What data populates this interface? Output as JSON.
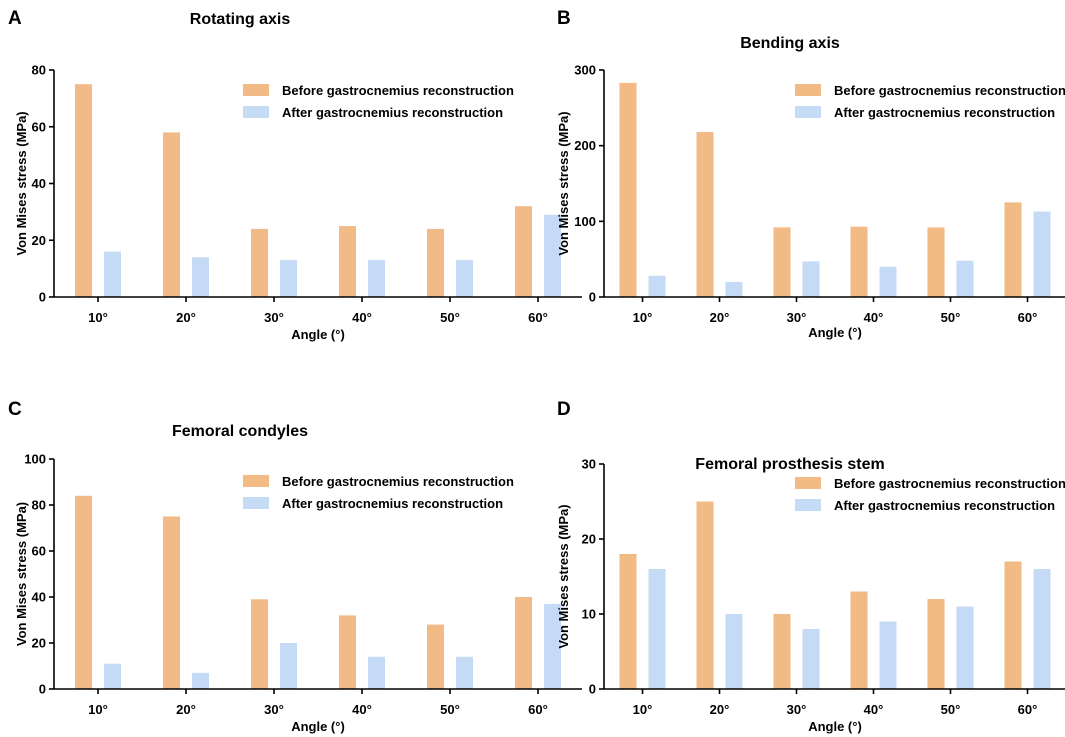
{
  "figure": {
    "colors": {
      "before": "#F2BA84",
      "after": "#C5DAF5"
    },
    "legend_before": "Before gastrocnemius reconstruction",
    "legend_after": "After gastrocnemius reconstruction"
  },
  "chart_data": [
    {
      "panel": "A",
      "type": "bar",
      "title": "Rotating axis",
      "xlabel": "Angle (°)",
      "ylabel": "Von Mises stress (MPa)",
      "categories": [
        "10°",
        "20°",
        "30°",
        "40°",
        "50°",
        "60°"
      ],
      "ylim": [
        0,
        80
      ],
      "yticks": [
        0,
        20,
        40,
        60,
        80
      ],
      "legend_position": "top-right",
      "series": [
        {
          "name": "Before gastrocnemius reconstruction",
          "values": [
            75,
            58,
            24,
            25,
            24,
            32
          ]
        },
        {
          "name": "After gastrocnemius reconstruction",
          "values": [
            16,
            14,
            13,
            13,
            13,
            29
          ]
        }
      ]
    },
    {
      "panel": "B",
      "type": "bar",
      "title": "Bending axis",
      "xlabel": "Angle (°)",
      "ylabel": "Von Mises stress (MPa)",
      "categories": [
        "10°",
        "20°",
        "30°",
        "40°",
        "50°",
        "60°"
      ],
      "ylim": [
        0,
        300
      ],
      "yticks": [
        0,
        100,
        200,
        300
      ],
      "legend_position": "top-right",
      "series": [
        {
          "name": "Before gastrocnemius reconstruction",
          "values": [
            283,
            218,
            92,
            93,
            92,
            125
          ]
        },
        {
          "name": "After gastrocnemius reconstruction",
          "values": [
            28,
            20,
            47,
            40,
            48,
            113
          ]
        }
      ]
    },
    {
      "panel": "C",
      "type": "bar",
      "title": "Femoral condyles",
      "xlabel": "Angle (°)",
      "ylabel": "Von Mises stress (MPa)",
      "categories": [
        "10°",
        "20°",
        "30°",
        "40°",
        "50°",
        "60°"
      ],
      "ylim": [
        0,
        100
      ],
      "yticks": [
        0,
        20,
        40,
        60,
        80,
        100
      ],
      "legend_position": "top-right",
      "series": [
        {
          "name": "Before gastrocnemius reconstruction",
          "values": [
            84,
            75,
            39,
            32,
            28,
            40
          ]
        },
        {
          "name": "After gastrocnemius reconstruction",
          "values": [
            11,
            7,
            20,
            14,
            14,
            37
          ]
        }
      ]
    },
    {
      "panel": "D",
      "type": "bar",
      "title": "Femoral prosthesis stem",
      "xlabel": "Angle (°)",
      "ylabel": "Von Mises stress (MPa)",
      "categories": [
        "10°",
        "20°",
        "30°",
        "40°",
        "50°",
        "60°"
      ],
      "ylim": [
        0,
        30
      ],
      "yticks": [
        0,
        10,
        20,
        30
      ],
      "legend_position": "top-right",
      "series": [
        {
          "name": "Before gastrocnemius reconstruction",
          "values": [
            18,
            25,
            10,
            13,
            12,
            17
          ]
        },
        {
          "name": "After gastrocnemius reconstruction",
          "values": [
            16,
            10,
            8,
            9,
            11,
            16
          ]
        }
      ]
    }
  ]
}
